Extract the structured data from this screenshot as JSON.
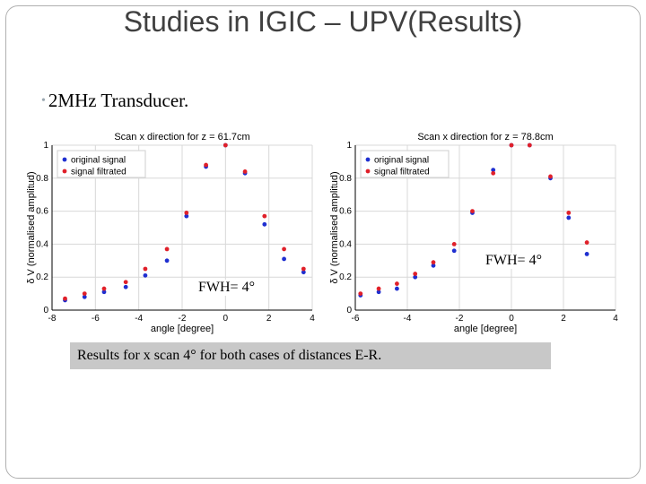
{
  "slide": {
    "title": "Studies in IGIC – UPV(Results)",
    "bullet": "2MHz Transducer.",
    "caption": "Results for x scan 4° for both cases of distances E-R.",
    "annotations": {
      "left_fwhm": "FWH= 4°",
      "right_fwhm": "FWH= 4°"
    },
    "colors": {
      "original": "#1f2fd0",
      "filtrated": "#e0202a",
      "grid": "#d8d8d8",
      "bullet_icon": "#9aa7b0"
    }
  },
  "chart_data": [
    {
      "type": "scatter",
      "title": "Scan x direction for z = 61.7cm",
      "xlabel": "angle [degree]",
      "ylabel": "δ V (normalised amplitud)",
      "xlim": [
        -8,
        4
      ],
      "ylim": [
        0,
        1
      ],
      "xticks": [
        "-8",
        "-6",
        "-4",
        "-2",
        "0",
        "2",
        "4"
      ],
      "yticks": [
        "0",
        "0.2",
        "0.4",
        "0.6",
        "0.8",
        "1"
      ],
      "grid": true,
      "legend": "top-left",
      "series": [
        {
          "name": "original signal",
          "color": "#1f2fd0",
          "x": [
            -7.4,
            -6.5,
            -5.6,
            -4.6,
            -3.7,
            -2.7,
            -1.8,
            -0.9,
            0.0,
            0.9,
            1.8,
            2.7,
            3.6
          ],
          "y": [
            0.06,
            0.08,
            0.11,
            0.14,
            0.21,
            0.3,
            0.57,
            0.87,
            1.0,
            0.83,
            0.52,
            0.31,
            0.23
          ]
        },
        {
          "name": "signal filtrated",
          "color": "#e0202a",
          "x": [
            -7.4,
            -6.5,
            -5.6,
            -4.6,
            -3.7,
            -2.7,
            -1.8,
            -0.9,
            0.0,
            0.9,
            1.8,
            2.7,
            3.6
          ],
          "y": [
            0.07,
            0.1,
            0.13,
            0.17,
            0.25,
            0.37,
            0.59,
            0.88,
            1.0,
            0.84,
            0.57,
            0.37,
            0.25
          ]
        }
      ]
    },
    {
      "type": "scatter",
      "title": "Scan x direction for z = 78.8cm",
      "xlabel": "angle [degree]",
      "ylabel": "δ V (normalised amplitud)",
      "xlim": [
        -6,
        4
      ],
      "ylim": [
        0,
        1
      ],
      "xticks": [
        "-6",
        "-4",
        "-2",
        "0",
        "2",
        "4"
      ],
      "yticks": [
        "0",
        "0.2",
        "0.4",
        "0.6",
        "0.8",
        "1"
      ],
      "grid": true,
      "legend": "top-left",
      "series": [
        {
          "name": "original signal",
          "color": "#1f2fd0",
          "x": [
            -5.8,
            -5.1,
            -4.4,
            -3.7,
            -3.0,
            -2.2,
            -1.5,
            -0.7,
            0.0,
            0.7,
            1.5,
            2.2,
            2.9
          ],
          "y": [
            0.09,
            0.11,
            0.13,
            0.2,
            0.27,
            0.36,
            0.59,
            0.85,
            1.0,
            1.0,
            0.8,
            0.56,
            0.34
          ]
        },
        {
          "name": "signal filtrated",
          "color": "#e0202a",
          "x": [
            -5.8,
            -5.1,
            -4.4,
            -3.7,
            -3.0,
            -2.2,
            -1.5,
            -0.7,
            0.0,
            0.7,
            1.5,
            2.2,
            2.9
          ],
          "y": [
            0.1,
            0.13,
            0.16,
            0.22,
            0.29,
            0.4,
            0.6,
            0.83,
            1.0,
            1.0,
            0.81,
            0.59,
            0.41
          ]
        }
      ]
    }
  ]
}
